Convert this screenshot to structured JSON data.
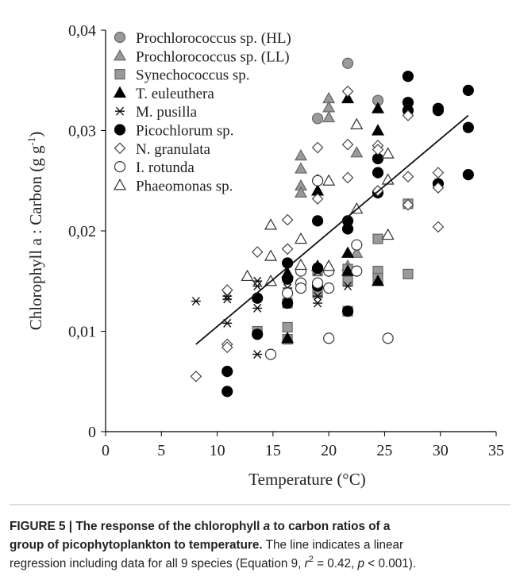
{
  "chart_data": {
    "type": "scatter",
    "xlabel": "Temperature (°C)",
    "ylabel": {
      "text": "Chlorophyll a : Carbon  (g g",
      "sup": "-1",
      "end": ")"
    },
    "xlim": [
      0,
      35
    ],
    "xticks": [
      0,
      5,
      10,
      15,
      20,
      25,
      30,
      35
    ],
    "ylim": [
      0,
      0.04
    ],
    "yticks": [
      0,
      {
        "value": 0.01,
        "label": "0,01"
      },
      {
        "value": 0.02,
        "label": "0,02"
      },
      {
        "value": 0.03,
        "label": "0,03"
      },
      {
        "value": 0.04,
        "label": "0,04"
      }
    ],
    "legend": "upper left",
    "trendline": {
      "x": [
        8.1,
        32.5
      ],
      "y": [
        0.0087,
        0.0315
      ],
      "color": "#111"
    },
    "series": [
      {
        "name": "Prochlorococcus sp. (HL)",
        "marker": "circle",
        "color": "#9a9a9a",
        "edge": "#666",
        "x": [
          19,
          21.7,
          24.4
        ],
        "y": [
          0.0312,
          0.0367,
          0.033
        ]
      },
      {
        "name": "Prochlorococcus sp. (LL)",
        "marker": "triangle",
        "color": "#9a9a9a",
        "edge": "#666",
        "x": [
          17.5,
          17.5,
          17.5,
          17.5,
          20,
          20,
          20,
          22.5,
          22.5,
          21.7
        ],
        "y": [
          0.0275,
          0.0262,
          0.0245,
          0.0238,
          0.0332,
          0.0323,
          0.0313,
          0.0278,
          0.0178,
          0.0165
        ]
      },
      {
        "name": "Synechococcus sp.",
        "marker": "square",
        "color": "#9a9a9a",
        "edge": "#666",
        "x": [
          13.6,
          16.3,
          16.3,
          16.3,
          19,
          19,
          21.7,
          21.7,
          21.7,
          24.4,
          24.4,
          24.4,
          27.1,
          27.1
        ],
        "y": [
          0.01,
          0.0104,
          0.0092,
          0.0128,
          0.016,
          0.0138,
          0.0162,
          0.015,
          0.012,
          0.0192,
          0.016,
          0.0153,
          0.0227,
          0.0157
        ]
      },
      {
        "name": "T. euleuthera",
        "marker": "triangle",
        "color": "#000",
        "edge": "#000",
        "x": [
          16.3,
          16.3,
          19,
          19,
          21.7,
          21.7,
          21.7,
          24.4,
          24.4,
          24.4
        ],
        "y": [
          0.0158,
          0.0093,
          0.024,
          0.0165,
          0.0332,
          0.0178,
          0.016,
          0.0322,
          0.03,
          0.015
        ]
      },
      {
        "name": "M. pusilla",
        "marker": "asterisk",
        "color": "none",
        "edge": "#111",
        "x": [
          8.1,
          10.9,
          10.9,
          10.9,
          13.6,
          13.6,
          13.6,
          13.6,
          16.3,
          16.3,
          16.3,
          19,
          19,
          19,
          21.7
        ],
        "y": [
          0.013,
          0.0135,
          0.0132,
          0.0108,
          0.015,
          0.0145,
          0.0123,
          0.0077,
          0.015,
          0.0143,
          0.0138,
          0.016,
          0.0135,
          0.0128,
          0.0145
        ]
      },
      {
        "name": "Picochlorum sp.",
        "marker": "circle",
        "color": "#000",
        "edge": "#000",
        "x": [
          10.9,
          10.9,
          13.6,
          13.6,
          16.3,
          16.3,
          16.3,
          19,
          19,
          19,
          21.7,
          21.7,
          21.7,
          24.4,
          24.4,
          24.4,
          27.1,
          27.1,
          27.1,
          29.8,
          29.8,
          29.8,
          32.5,
          32.5,
          32.5
        ],
        "y": [
          0.006,
          0.004,
          0.0133,
          0.0097,
          0.0168,
          0.0152,
          0.0128,
          0.021,
          0.0163,
          0.0145,
          0.021,
          0.0202,
          0.012,
          0.0272,
          0.0258,
          0.0238,
          0.0354,
          0.0328,
          0.032,
          0.0322,
          0.032,
          0.0247,
          0.034,
          0.0303,
          0.0256
        ]
      },
      {
        "name": "N. granulata",
        "marker": "diamond",
        "color": "#fff",
        "edge": "#444",
        "x": [
          8.1,
          10.9,
          10.9,
          10.9,
          13.6,
          16.3,
          16.3,
          19,
          19,
          19,
          21.7,
          21.7,
          21.7,
          24.4,
          24.4,
          24.4,
          27.1,
          27.1,
          27.1,
          29.8,
          29.8,
          29.8
        ],
        "y": [
          0.0055,
          0.0141,
          0.0087,
          0.0084,
          0.0179,
          0.0211,
          0.0182,
          0.0283,
          0.0251,
          0.0232,
          0.0339,
          0.0286,
          0.0253,
          0.0285,
          0.0281,
          0.024,
          0.0315,
          0.0254,
          0.0226,
          0.0258,
          0.0243,
          0.0204
        ]
      },
      {
        "name": "I. rotunda",
        "marker": "circle",
        "color": "#fff",
        "edge": "#333",
        "x": [
          14.8,
          16.3,
          17.5,
          17.5,
          17.5,
          19,
          20,
          20,
          20,
          22.5,
          22.5,
          25.3,
          19
        ],
        "y": [
          0.0077,
          0.0138,
          0.016,
          0.0148,
          0.0143,
          0.025,
          0.016,
          0.0143,
          0.0093,
          0.0186,
          0.016,
          0.0093,
          0.0148
        ]
      },
      {
        "name": "Phaeomonas sp.",
        "marker": "triangle",
        "color": "#fff",
        "edge": "#333",
        "x": [
          12.7,
          14.8,
          14.8,
          14.8,
          17.5,
          17.5,
          20,
          20,
          22.5,
          22.5,
          25.3,
          25.3,
          25.3
        ],
        "y": [
          0.0155,
          0.0206,
          0.0175,
          0.015,
          0.0192,
          0.0166,
          0.025,
          0.0165,
          0.0306,
          0.0222,
          0.0277,
          0.0251,
          0.0196
        ]
      }
    ]
  },
  "caption": {
    "lines": [
      [
        {
          "text": "FIGURE 5 | The response of the chlorophyll ",
          "style": "b"
        },
        {
          "text": "a",
          "style": "bi"
        },
        {
          "text": " to carbon ratios of a",
          "style": "b"
        }
      ],
      [
        {
          "text": "group of picophytoplankton to temperature.",
          "style": "b"
        },
        {
          "text": " The line indicates a linear",
          "style": "n"
        }
      ],
      [
        {
          "text": "regression including data for all 9 species (Equation 9, ",
          "style": "n"
        },
        {
          "text": "r",
          "style": "i"
        },
        {
          "text": "2",
          "style": "sup"
        },
        {
          "text": " = 0.42,  ",
          "style": "n"
        },
        {
          "text": "p",
          "style": "i"
        },
        {
          "text": " < 0.001).",
          "style": "n"
        }
      ]
    ]
  }
}
